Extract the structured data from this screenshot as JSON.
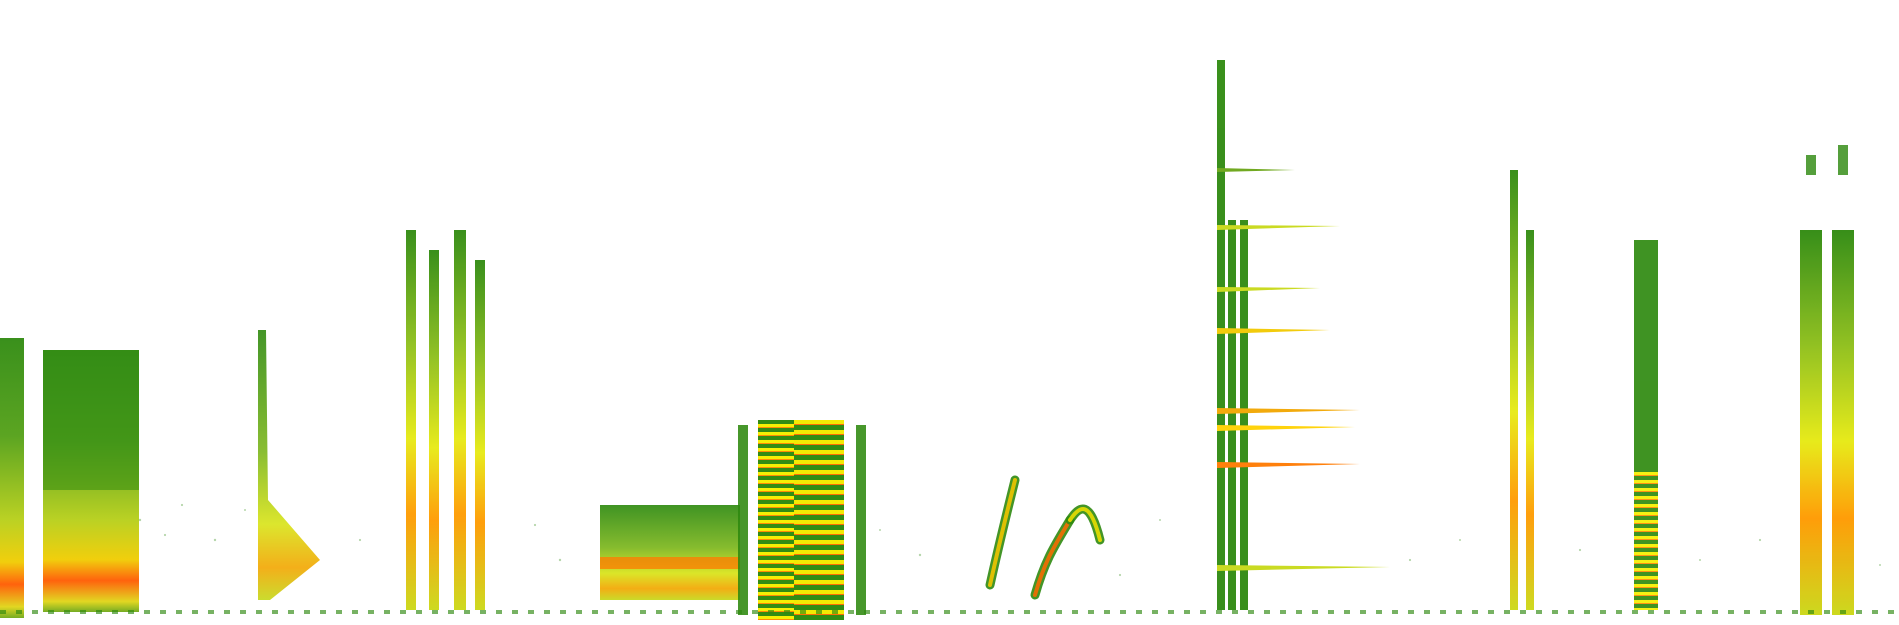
{
  "image": {
    "kind": "spectrogram",
    "background": "#ffffff",
    "palette": {
      "low": "#2f8a10",
      "mid_low": "#5ea51a",
      "mid": "#b9d11e",
      "high": "#eef000",
      "very_high": "#ff9a00",
      "peak": "#ff2a00"
    }
  }
}
